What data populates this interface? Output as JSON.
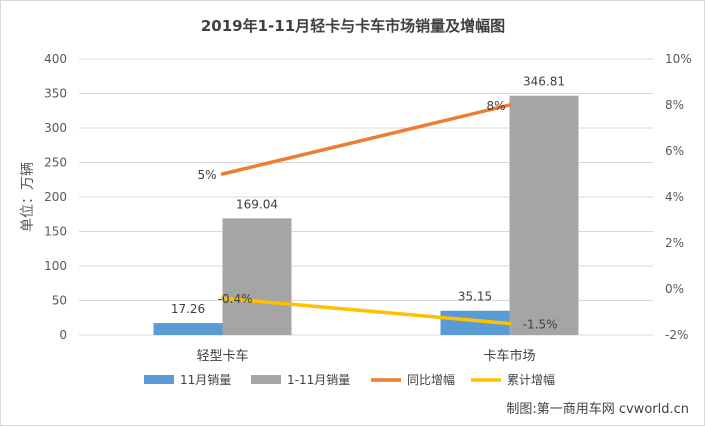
{
  "chart_data": {
    "type": "bar",
    "title": "2019年1-11月轻卡与卡车市场销量及增幅图",
    "ylabel": "单位：万辆",
    "categories": [
      "轻型卡车",
      "卡车市场"
    ],
    "ylim": [
      0,
      400
    ],
    "yticks": [
      "0",
      "50",
      "100",
      "150",
      "200",
      "250",
      "300",
      "350",
      "400"
    ],
    "y2lim": [
      -2,
      10
    ],
    "y2ticks": [
      "-2%",
      "0%",
      "2%",
      "4%",
      "6%",
      "8%",
      "10%"
    ],
    "series": [
      {
        "name": "11月销量",
        "type": "bar",
        "axis": "left",
        "color": "#5b9bd5",
        "values": [
          17.26,
          35.15
        ],
        "labels": [
          "17.26",
          "35.15"
        ]
      },
      {
        "name": "1-11月销量",
        "type": "bar",
        "axis": "left",
        "color": "#a5a5a5",
        "values": [
          169.04,
          346.81
        ],
        "labels": [
          "169.04",
          "346.81"
        ]
      },
      {
        "name": "同比增幅",
        "type": "line",
        "axis": "right",
        "color": "#ed7d31",
        "values": [
          5,
          8
        ],
        "labels": [
          "5%",
          "8%"
        ]
      },
      {
        "name": "累计增幅",
        "type": "line",
        "axis": "right",
        "color": "#ffc000",
        "values": [
          -0.4,
          -1.5
        ],
        "labels": [
          "-0.4%",
          "-1.5%"
        ]
      }
    ],
    "grid": true,
    "legend_position": "bottom"
  },
  "credit": "制图:第一商用车网 cvworld.cn"
}
